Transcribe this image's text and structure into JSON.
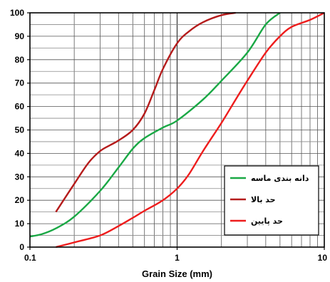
{
  "chart_data": {
    "type": "line",
    "xlabel": "Grain Size  (mm)",
    "ylabel": "",
    "x_scale": "log",
    "xlim": [
      0.1,
      10
    ],
    "ylim": [
      0,
      100
    ],
    "x_ticks": [
      {
        "value": 0.1,
        "label": "0.1"
      },
      {
        "value": 1,
        "label": "1"
      },
      {
        "value": 10,
        "label": "10"
      }
    ],
    "y_ticks": [
      0,
      10,
      20,
      30,
      40,
      50,
      60,
      70,
      80,
      90,
      100
    ],
    "grid": true,
    "legend_position": "bottom-right",
    "series": [
      {
        "name": "دانه بندی ماسه",
        "color": "#1aa845",
        "points": [
          [
            0.1,
            4.5
          ],
          [
            0.12,
            5.5
          ],
          [
            0.15,
            8
          ],
          [
            0.2,
            13
          ],
          [
            0.3,
            24
          ],
          [
            0.4,
            34
          ],
          [
            0.5,
            42
          ],
          [
            0.6,
            46.5
          ],
          [
            0.8,
            51
          ],
          [
            1.0,
            54
          ],
          [
            1.5,
            63
          ],
          [
            2.0,
            71
          ],
          [
            3.0,
            83
          ],
          [
            4.0,
            95
          ],
          [
            5.0,
            100
          ]
        ]
      },
      {
        "name": "حد بالا",
        "color": "#b51c1c",
        "points": [
          [
            0.15,
            15
          ],
          [
            0.2,
            27
          ],
          [
            0.25,
            36
          ],
          [
            0.3,
            41
          ],
          [
            0.35,
            43.5
          ],
          [
            0.4,
            45.5
          ],
          [
            0.5,
            50
          ],
          [
            0.6,
            57
          ],
          [
            0.7,
            67
          ],
          [
            0.8,
            76
          ],
          [
            1.0,
            87
          ],
          [
            1.2,
            92
          ],
          [
            1.5,
            96
          ],
          [
            2.0,
            99
          ],
          [
            2.5,
            100
          ]
        ]
      },
      {
        "name": "حد پایین",
        "color": "#ee1d1d",
        "points": [
          [
            0.15,
            0
          ],
          [
            0.2,
            2
          ],
          [
            0.3,
            5
          ],
          [
            0.4,
            9
          ],
          [
            0.5,
            12.5
          ],
          [
            0.6,
            15.5
          ],
          [
            0.8,
            20
          ],
          [
            1.0,
            25
          ],
          [
            1.2,
            31
          ],
          [
            1.5,
            41
          ],
          [
            2.0,
            53
          ],
          [
            2.5,
            63
          ],
          [
            3.0,
            71
          ],
          [
            4.0,
            83
          ],
          [
            5.0,
            90
          ],
          [
            6.0,
            94
          ],
          [
            8.0,
            97
          ],
          [
            10.0,
            100
          ]
        ]
      }
    ]
  }
}
